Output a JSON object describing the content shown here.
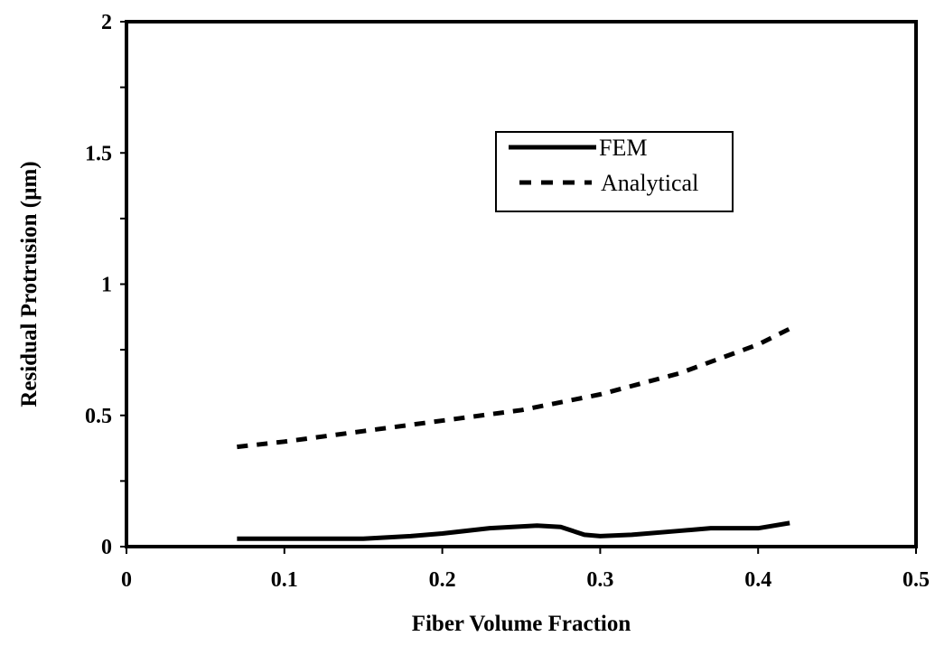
{
  "chart_data": {
    "type": "line",
    "title": "",
    "xlabel": "Fiber Volume Fraction",
    "ylabel": "Residual Protrusion (µm)",
    "xlim": [
      0,
      0.5
    ],
    "ylim": [
      0,
      2
    ],
    "xticks": [
      "0",
      "0.1",
      "0.2",
      "0.3",
      "0.4",
      "0.5"
    ],
    "yticks": [
      "0",
      "0.5",
      "1",
      "1.5",
      "2"
    ],
    "grid": false,
    "legend_position": "upper-right",
    "series": [
      {
        "name": "FEM",
        "style": "solid",
        "color": "#000000",
        "x": [
          0.07,
          0.1,
          0.15,
          0.18,
          0.2,
          0.23,
          0.26,
          0.275,
          0.29,
          0.3,
          0.32,
          0.35,
          0.37,
          0.4,
          0.42
        ],
        "y": [
          0.03,
          0.03,
          0.03,
          0.04,
          0.05,
          0.07,
          0.08,
          0.075,
          0.045,
          0.04,
          0.045,
          0.06,
          0.07,
          0.07,
          0.09
        ]
      },
      {
        "name": "Analytical",
        "style": "dashed",
        "color": "#000000",
        "x": [
          0.07,
          0.1,
          0.15,
          0.2,
          0.25,
          0.3,
          0.35,
          0.4,
          0.42
        ],
        "y": [
          0.38,
          0.4,
          0.44,
          0.48,
          0.52,
          0.58,
          0.66,
          0.77,
          0.83
        ]
      }
    ]
  }
}
